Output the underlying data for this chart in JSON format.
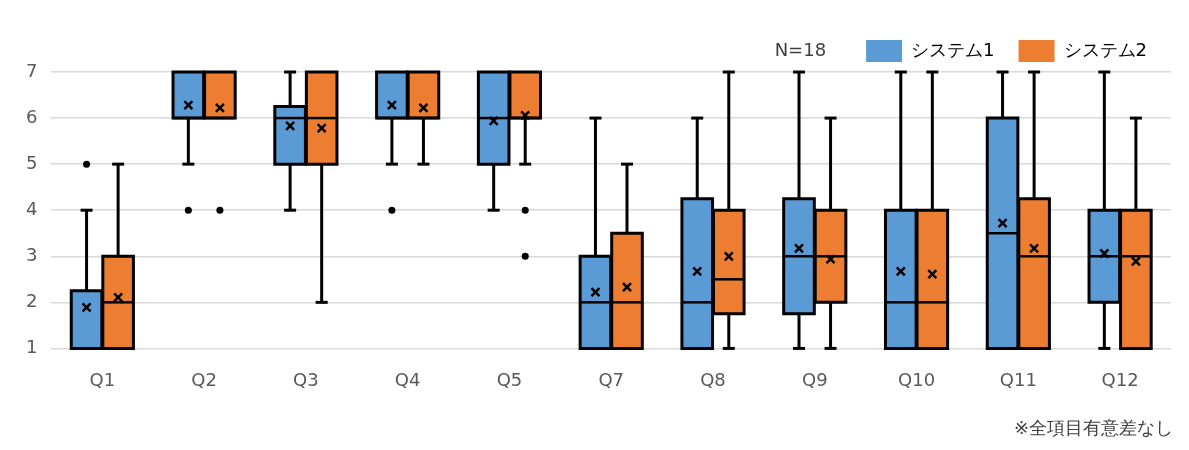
{
  "chart_data": {
    "type": "box",
    "categories": [
      "Q1",
      "Q2",
      "Q3",
      "Q4",
      "Q5",
      "Q7",
      "Q8",
      "Q9",
      "Q10",
      "Q11",
      "Q12"
    ],
    "series": [
      {
        "name": "システム1",
        "color": "#5b9bd5",
        "boxes": [
          {
            "low": 1,
            "q1": 1,
            "median": 1,
            "q3": 2.25,
            "high": 4,
            "mean": 1.89,
            "outliers": [
              5
            ]
          },
          {
            "low": 5,
            "q1": 6,
            "median": 6,
            "q3": 7,
            "high": 7,
            "mean": 6.28,
            "outliers": [
              4
            ]
          },
          {
            "low": 4,
            "q1": 5,
            "median": 6,
            "q3": 6.25,
            "high": 7,
            "mean": 5.83
          },
          {
            "low": 5,
            "q1": 6,
            "median": 6,
            "q3": 7,
            "high": 7,
            "mean": 6.28,
            "outliers": [
              4
            ]
          },
          {
            "low": 4,
            "q1": 5,
            "median": 6,
            "q3": 7,
            "high": 7,
            "mean": 5.94
          },
          {
            "low": 1,
            "q1": 1,
            "median": 2,
            "q3": 3,
            "high": 6,
            "mean": 2.22
          },
          {
            "low": 1,
            "q1": 1,
            "median": 2,
            "q3": 4.25,
            "high": 6,
            "mean": 2.67
          },
          {
            "low": 1,
            "q1": 1.75,
            "median": 3,
            "q3": 4.25,
            "high": 7,
            "mean": 3.17
          },
          {
            "low": 1,
            "q1": 1,
            "median": 2,
            "q3": 4,
            "high": 7,
            "mean": 2.67
          },
          {
            "low": 1,
            "q1": 1,
            "median": 3.5,
            "q3": 6,
            "high": 7,
            "mean": 3.72
          },
          {
            "low": 1,
            "q1": 2,
            "median": 3,
            "q3": 4,
            "high": 7,
            "mean": 3.06
          }
        ]
      },
      {
        "name": "システム2",
        "color": "#ed7d31",
        "boxes": [
          {
            "low": 1,
            "q1": 1,
            "median": 2,
            "q3": 3,
            "high": 5,
            "mean": 2.11
          },
          {
            "low": 6,
            "q1": 6,
            "median": 6,
            "q3": 7,
            "high": 7,
            "mean": 6.22,
            "outliers": [
              4
            ]
          },
          {
            "low": 2,
            "q1": 5,
            "median": 6,
            "q3": 7,
            "high": 7,
            "mean": 5.78
          },
          {
            "low": 5,
            "q1": 6,
            "median": 6,
            "q3": 7,
            "high": 7,
            "mean": 6.22
          },
          {
            "low": 5,
            "q1": 6,
            "median": 6,
            "q3": 7,
            "high": 7,
            "mean": 6.06,
            "outliers": [
              4,
              3
            ]
          },
          {
            "low": 1,
            "q1": 1,
            "median": 2,
            "q3": 3.5,
            "high": 5,
            "mean": 2.33
          },
          {
            "low": 1,
            "q1": 1.75,
            "median": 2.5,
            "q3": 4,
            "high": 7,
            "mean": 3.0
          },
          {
            "low": 1,
            "q1": 2,
            "median": 3,
            "q3": 4,
            "high": 6,
            "mean": 2.94
          },
          {
            "low": 1,
            "q1": 1,
            "median": 2,
            "q3": 4,
            "high": 7,
            "mean": 2.61
          },
          {
            "low": 1,
            "q1": 1,
            "median": 3,
            "q3": 4.25,
            "high": 7,
            "mean": 3.17
          },
          {
            "low": 1,
            "q1": 1,
            "median": 3,
            "q3": 4,
            "high": 6,
            "mean": 2.89
          }
        ]
      }
    ],
    "ylim": [
      1,
      7
    ],
    "yticks": [
      1,
      2,
      3,
      4,
      5,
      6,
      7
    ],
    "grid": "y",
    "legend": "top right",
    "annotations": [
      "N=18",
      "※全項目有意差なし"
    ]
  }
}
